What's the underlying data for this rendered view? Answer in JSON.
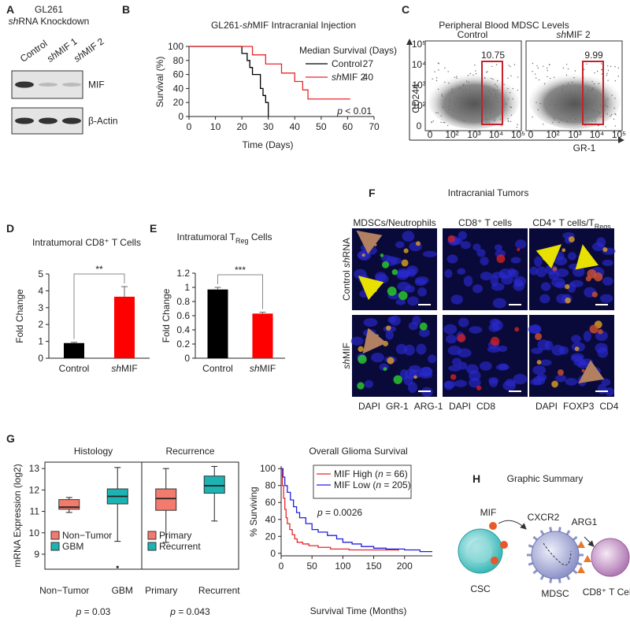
{
  "chart_data": [
    {
      "label": "B",
      "type": "step",
      "title": "GL261-shMIF Intracranial Injection",
      "xlabel": "Time (Days)",
      "ylabel": "Survival (%)",
      "xlim": [
        0,
        70
      ],
      "xticks": [
        0,
        10,
        20,
        30,
        40,
        50,
        60,
        70
      ],
      "ylim": [
        0,
        100
      ],
      "yticks": [
        0,
        20,
        40,
        60,
        80,
        100
      ],
      "legend": "upper right",
      "legend_title": "Median Survival (Days)",
      "annotation": "p < 0.01",
      "series": [
        {
          "name": "Control",
          "color": "#000000",
          "x": [
            0,
            20,
            22,
            23,
            24,
            27,
            28,
            29,
            30
          ],
          "values": [
            100,
            90,
            80,
            70,
            60,
            40,
            30,
            20,
            0
          ],
          "median": 27
        },
        {
          "name": "shMIF 2",
          "color": "#e8262a",
          "x": [
            0,
            24,
            29,
            35,
            40,
            43,
            45,
            61
          ],
          "values": [
            100,
            88,
            75,
            62,
            50,
            38,
            25,
            25
          ],
          "median": 40
        }
      ]
    },
    {
      "label": "D",
      "type": "bar",
      "title": [
        "Intratumoral CD8⁺ T Cells"
      ],
      "ylabel": "Fold Change",
      "categories": [
        "Control",
        "shMIF"
      ],
      "values": [
        0.9,
        3.65
      ],
      "errors": [
        0.05,
        0.6
      ],
      "colors": [
        "#000000",
        "#ff0000"
      ],
      "ylim": [
        0,
        5
      ],
      "yticks": [
        0,
        1,
        2,
        3,
        4,
        5
      ],
      "significance": "**"
    },
    {
      "label": "E",
      "type": "bar",
      "title": [
        "Intratumoral T",
        "Reg",
        " Cells"
      ],
      "ylabel": "Fold Change",
      "categories": [
        "Control",
        "shMIF"
      ],
      "values": [
        0.97,
        0.63
      ],
      "errors": [
        0.03,
        0.02
      ],
      "colors": [
        "#000000",
        "#ff0000"
      ],
      "ylim": [
        0,
        1.2
      ],
      "yticks": [
        0,
        0.2,
        0.4,
        0.6,
        0.8,
        1,
        1.2
      ],
      "significance": "***"
    },
    {
      "label": "G",
      "type": "box",
      "ylabel": "mRNA Expression (log2)",
      "ylim": [
        8.3,
        13.3
      ],
      "yticks": [
        9,
        10,
        11,
        12,
        13
      ],
      "legend": "lower left",
      "groups": [
        {
          "title": "Histology",
          "categories": [
            "Non−Tumor",
            "GBM"
          ],
          "colors": [
            "#f27b6e",
            "#1db3b3"
          ],
          "p_value": "p = 0.03",
          "boxes": [
            {
              "low": 10.95,
              "q1": 11.1,
              "median": 11.2,
              "q3": 11.55,
              "high": 11.65
            },
            {
              "low": 9.6,
              "q1": 11.35,
              "median": 11.7,
              "q3": 12.05,
              "high": 13.05
            }
          ],
          "outliers": [
            [],
            [
              8.4
            ]
          ]
        },
        {
          "title": "Recurrence",
          "categories": [
            "Primary",
            "Recurrent"
          ],
          "colors": [
            "#f27b6e",
            "#1db3b3"
          ],
          "p_value": "p = 0.043",
          "boxes": [
            {
              "low": 9.55,
              "q1": 11.05,
              "median": 11.6,
              "q3": 12.05,
              "high": 13.0
            },
            {
              "low": 10.55,
              "q1": 11.85,
              "median": 12.2,
              "q3": 12.65,
              "high": 13.1
            }
          ],
          "outliers": [
            [],
            []
          ]
        }
      ]
    },
    {
      "type": "step",
      "title": "Overall Glioma Survival",
      "xlabel": "Survival Time (Months)",
      "ylabel": "% Surviving",
      "xlim": [
        0,
        245
      ],
      "xticks": [
        0,
        50,
        100,
        150,
        200
      ],
      "ylim": [
        -3,
        103
      ],
      "yticks": [
        0,
        20,
        40,
        60,
        80,
        100
      ],
      "legend": "upper right",
      "annotation": "p = 0.0026",
      "series": [
        {
          "name": "MIF High (n = 66)",
          "color": "#e8262a",
          "x": [
            0,
            2,
            4,
            6,
            8,
            10,
            14,
            18,
            22,
            26,
            35,
            45,
            60,
            80,
            110,
            190
          ],
          "values": [
            100,
            80,
            65,
            52,
            42,
            35,
            28,
            22,
            17,
            13,
            11,
            9,
            7,
            5,
            4,
            3
          ]
        },
        {
          "name": "MIF Low (n = 205)",
          "color": "#2020e0",
          "x": [
            0,
            3,
            6,
            10,
            15,
            20,
            25,
            30,
            40,
            50,
            60,
            75,
            90,
            100,
            115,
            130,
            150,
            170,
            200,
            225,
            245
          ],
          "values": [
            100,
            90,
            80,
            72,
            63,
            55,
            48,
            42,
            35,
            28,
            25,
            21,
            17,
            13,
            11,
            8,
            6,
            5,
            4,
            2,
            2
          ]
        }
      ]
    }
  ],
  "blot": {
    "label": "A",
    "title": [
      "GL261",
      "shRNA Knockdown"
    ],
    "lanes": [
      "Control",
      "shMIF 1",
      "shMIF 2"
    ],
    "bands": [
      "MIF",
      "β-Actin"
    ]
  },
  "flow": {
    "label": "C",
    "title": "Peripheral Blood MDSC Levels",
    "xlabel": "GR-1",
    "ylabel": "CD244",
    "ticks": [
      "0",
      "10²",
      "10³",
      "10⁴",
      "10⁵"
    ],
    "plots": [
      {
        "name": "Control",
        "gate": 10.75
      },
      {
        "name": "shMIF 2",
        "gate": 9.99
      }
    ]
  },
  "images": {
    "label": "F",
    "title": "Intracranial Tumors",
    "rows": [
      "Control shRNA",
      "shMIF"
    ],
    "columns": [
      {
        "title": [
          "MDSCs/Neutrophils"
        ],
        "stains": [
          {
            "name": "DAPI",
            "color": "#2b2bd6"
          },
          {
            "name": "GR-1",
            "color": "#1fa51f"
          },
          {
            "name": "ARG-1",
            "color": "#e02020"
          }
        ]
      },
      {
        "title": [
          "CD8⁺ T cells"
        ],
        "stains": [
          {
            "name": "DAPI",
            "color": "#2b2bd6"
          },
          {
            "name": "CD8",
            "color": "#e02020"
          }
        ]
      },
      {
        "title": [
          "CD4⁺ T cells/T",
          "Regs"
        ],
        "stains": [
          {
            "name": "DAPI",
            "color": "#2b2bd6"
          },
          {
            "name": "FOXP3",
            "color": "#1fa51f"
          },
          {
            "name": "CD4",
            "color": "#e02020"
          }
        ]
      }
    ]
  },
  "summary": {
    "label": "H",
    "title": "Graphic Summary",
    "mif": "MIF",
    "cxcr2": "CXCR2",
    "arg1": "ARG1",
    "csc": "CSC",
    "mdsc": "MDSC",
    "tcell": "CD8⁺ T Cell"
  }
}
